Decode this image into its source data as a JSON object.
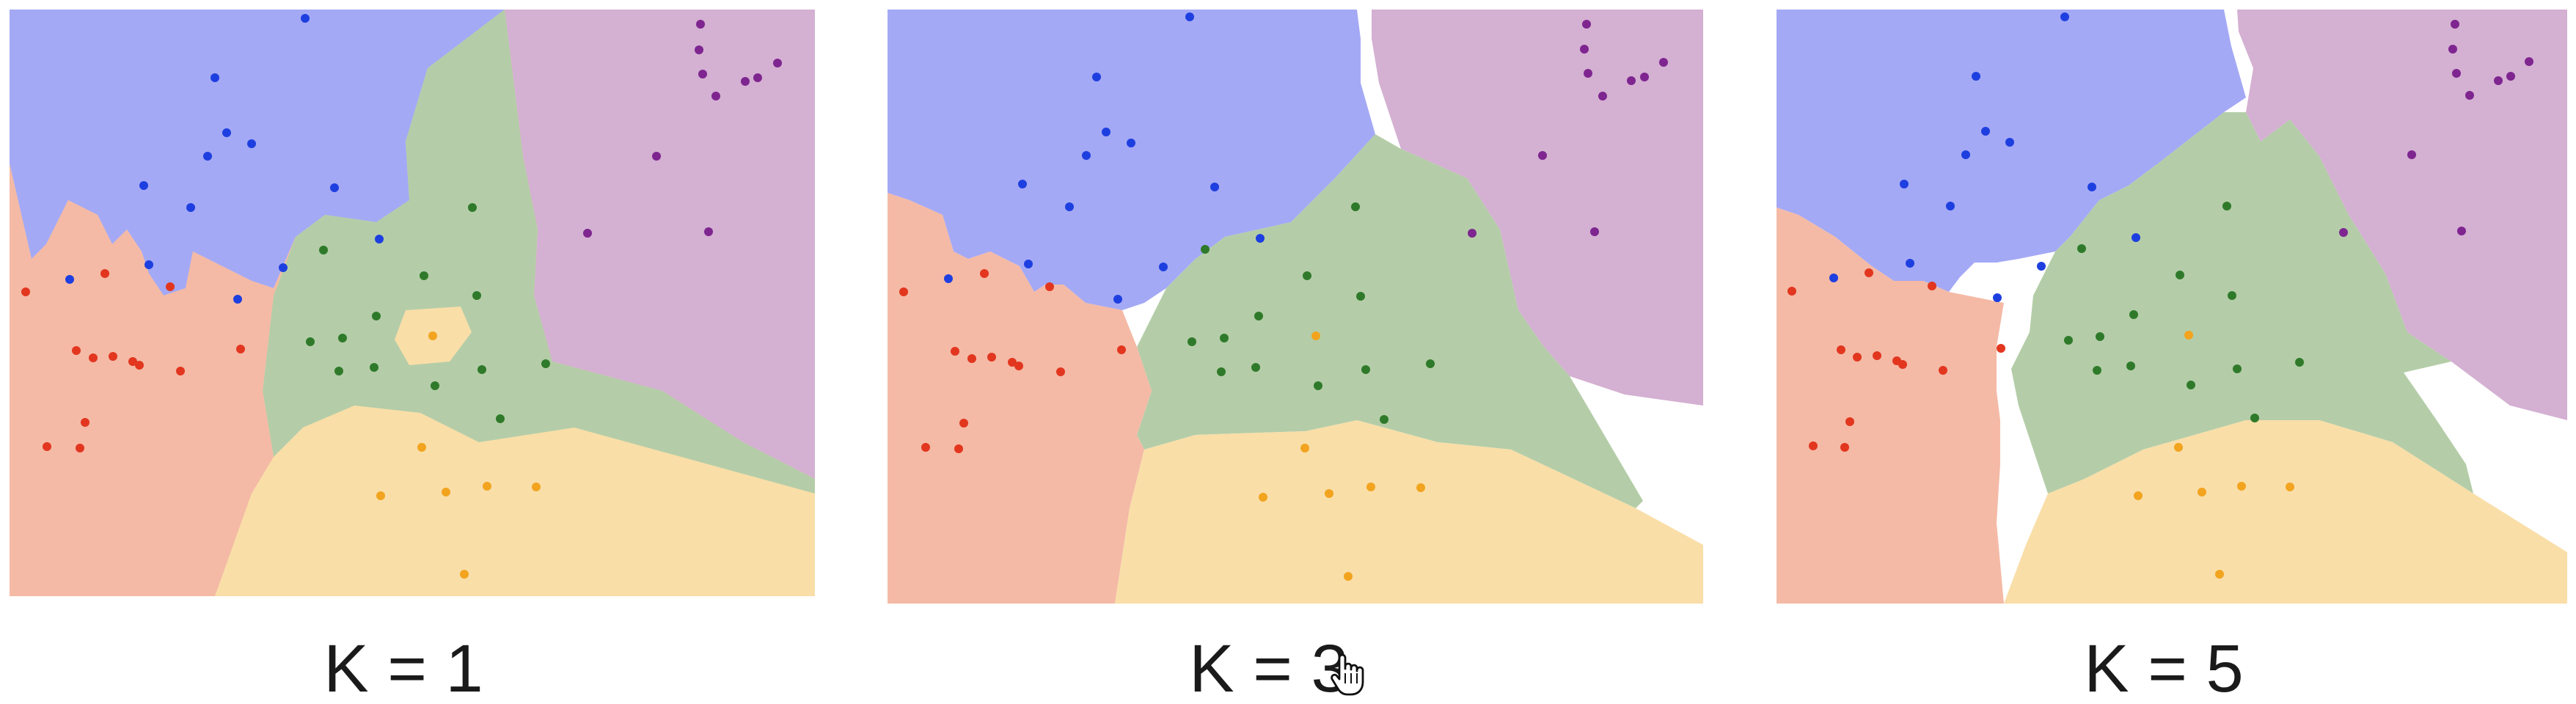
{
  "figure": {
    "panels": [
      {
        "id": "k1",
        "caption": "K = 1"
      },
      {
        "id": "k3",
        "caption": "K = 3"
      },
      {
        "id": "k5",
        "caption": "K = 5"
      }
    ]
  },
  "colors": {
    "blue_region": "#a4a9f5",
    "purple_region": "#d4b0d2",
    "green_region": "#b4cda8",
    "red_region": "#f4baa6",
    "yellow_region": "#f9dea8",
    "blue_point": "#1e3fe0",
    "purple_point": "#7e2590",
    "green_point": "#2f7a2a",
    "red_point": "#e2361f",
    "yellow_point": "#f2a41f"
  },
  "cursor": {
    "icon": "hand-pointer-icon"
  }
}
